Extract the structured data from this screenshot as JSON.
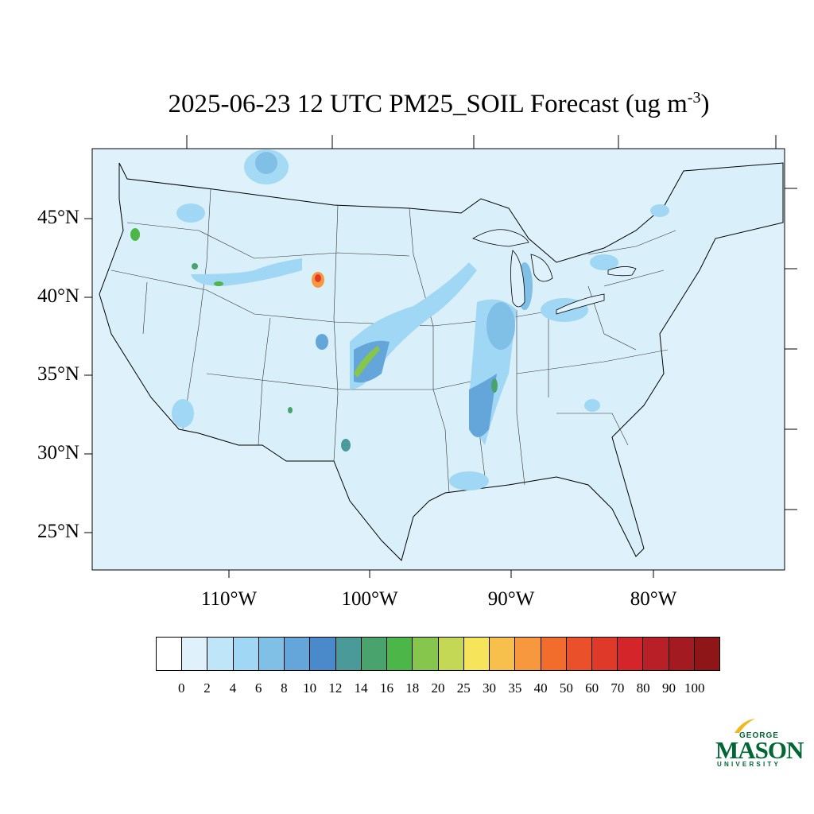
{
  "title": {
    "text": "2025-06-23 12 UTC PM25_SOIL Forecast (ug m",
    "superscript": "-3",
    "suffix": ")"
  },
  "map": {
    "background_color": "#dff2fb",
    "latitude_labels": [
      "45°N",
      "40°N",
      "35°N",
      "30°N",
      "25°N"
    ],
    "longitude_labels": [
      "110°W",
      "100°W",
      "90°W",
      "80°W"
    ]
  },
  "legend": {
    "levels": [
      "0",
      "2",
      "4",
      "6",
      "8",
      "10",
      "12",
      "14",
      "16",
      "18",
      "20",
      "25",
      "30",
      "35",
      "40",
      "50",
      "60",
      "70",
      "80",
      "90",
      "100"
    ],
    "colors": [
      "#ffffff",
      "#dff2fb",
      "#bfe6f8",
      "#9fd7f4",
      "#80bfe6",
      "#65a6da",
      "#4a8acb",
      "#4a9a9a",
      "#48a46c",
      "#4cb648",
      "#86c64c",
      "#c5d855",
      "#f6e45a",
      "#f7bf4c",
      "#f7983e",
      "#f26c2c",
      "#ea512b",
      "#df3a29",
      "#d3252a",
      "#b81f26",
      "#a31b21",
      "#8e1619"
    ]
  },
  "logo": {
    "line1": "GEORGE",
    "line2": "MASON",
    "line3": "UNIVERSITY"
  }
}
